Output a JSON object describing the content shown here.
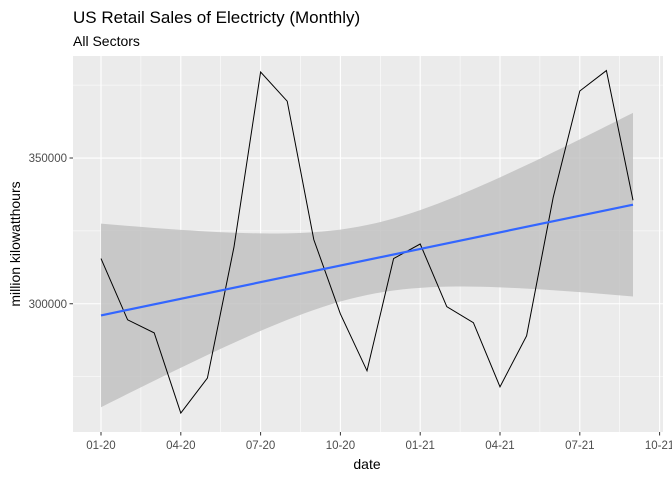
{
  "chart_data": {
    "type": "line",
    "title": "US Retail Sales of Electricty (Monthly)",
    "subtitle": "All Sectors",
    "xlabel": "date",
    "ylabel": "million kilowatthours",
    "x": [
      "2020-01",
      "2020-02",
      "2020-03",
      "2020-04",
      "2020-05",
      "2020-06",
      "2020-07",
      "2020-08",
      "2020-09",
      "2020-10",
      "2020-11",
      "2020-12",
      "2021-01",
      "2021-02",
      "2021-03",
      "2021-04",
      "2021-05",
      "2021-06",
      "2021-07",
      "2021-08",
      "2021-09"
    ],
    "series": [
      {
        "values": [
          315500,
          294500,
          290000,
          262500,
          274500,
          319500,
          379500,
          369500,
          322000,
          296500,
          277000,
          315500,
          320500,
          299000,
          293500,
          271500,
          289000,
          336500,
          373000,
          380000,
          335500
        ]
      }
    ],
    "trend": {
      "method": "linear fit with confidence band",
      "fit": [
        296000,
        334000
      ],
      "band_lower": [
        264500,
        303000
      ],
      "band_upper": [
        327500,
        365500
      ]
    },
    "x_ticks": [
      "01-20",
      "04-20",
      "07-20",
      "10-20",
      "01-21",
      "04-21",
      "07-21",
      "10-21"
    ],
    "y_ticks": [
      "300000",
      "350000"
    ],
    "ylim": [
      256000,
      385000
    ],
    "grid": true,
    "colors": {
      "panel": "#ebebeb",
      "grid_major": "#ffffff",
      "line": "#000000",
      "trend": "#3366ff",
      "band": "#bfbfbf"
    }
  }
}
